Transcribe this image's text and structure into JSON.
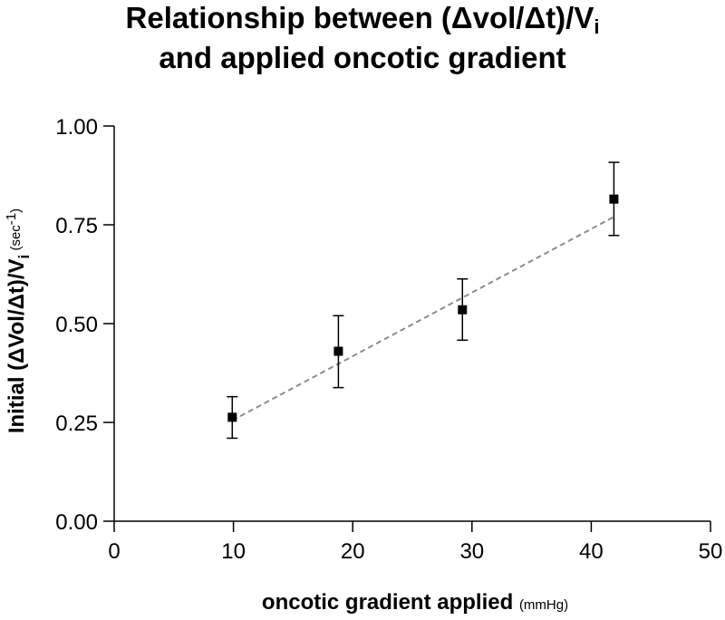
{
  "title": {
    "line1_prefix": "Relationship between (Δvol/Δt)/V",
    "line1_sub": "i",
    "line2": "and applied oncotic gradient"
  },
  "chart_data": {
    "type": "scatter",
    "title": "Relationship between (Δvol/Δt)/Vi and applied oncotic gradient",
    "xlabel": "oncotic gradient applied",
    "xunit": "(mmHg)",
    "ylabel_main": "Initial (ΔVol/Δt)/V",
    "ylabel_sub": "i",
    "yunit": "(sec",
    "yunit_sup": "-1",
    "yunit_close": ")",
    "xlim": [
      0,
      50
    ],
    "ylim": [
      0,
      1.0
    ],
    "xticks": [
      0,
      10,
      20,
      30,
      40,
      50
    ],
    "xtick_labels": [
      "0",
      "10",
      "20",
      "30",
      "40",
      "50"
    ],
    "yticks": [
      0,
      0.25,
      0.5,
      0.75,
      1.0
    ],
    "ytick_labels": [
      "0.00",
      "0.25",
      "0.50",
      "0.75",
      "1.00"
    ],
    "grid": false,
    "points": [
      {
        "x": 9.9,
        "y": 0.263,
        "err_low": 0.21,
        "err_high": 0.315
      },
      {
        "x": 18.8,
        "y": 0.43,
        "err_low": 0.338,
        "err_high": 0.52
      },
      {
        "x": 29.2,
        "y": 0.535,
        "err_low": 0.458,
        "err_high": 0.613
      },
      {
        "x": 41.9,
        "y": 0.815,
        "err_low": 0.723,
        "err_high": 0.908
      }
    ],
    "fit_line": {
      "x": [
        9.9,
        41.9
      ],
      "y": [
        0.255,
        0.77
      ],
      "style": "dashed",
      "color": "#8c8c8c"
    },
    "marker_color": "#000000"
  }
}
